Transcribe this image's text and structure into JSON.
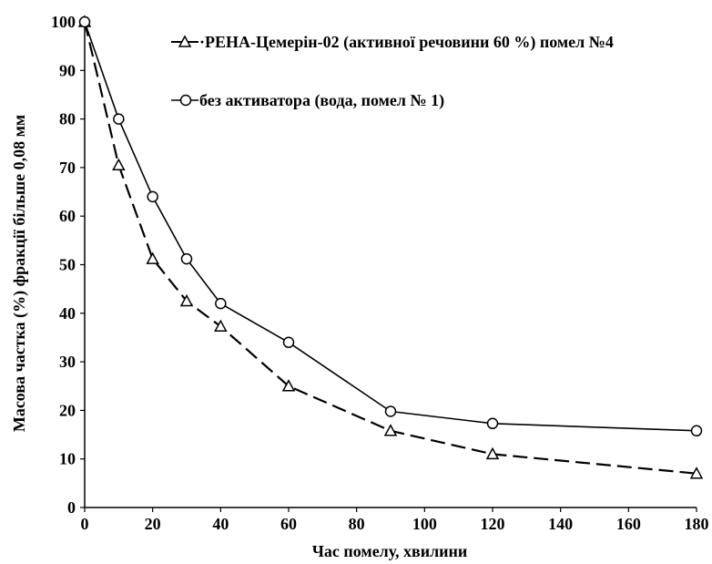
{
  "chart_data": {
    "type": "line",
    "xlabel": "Час помелу, хвилини",
    "ylabel": "Масова частка (%) фракції більше 0,08 мм",
    "xlim": [
      0,
      180
    ],
    "ylim": [
      0,
      100
    ],
    "x_ticks": [
      0,
      20,
      40,
      60,
      80,
      100,
      120,
      140,
      160,
      180
    ],
    "y_ticks": [
      0,
      10,
      20,
      30,
      40,
      50,
      60,
      70,
      80,
      90,
      100
    ],
    "grid": false,
    "legend_position": "top-right",
    "series": [
      {
        "name": "·РЕНА-Цемерін-02 (активної речовини 60 %) помел №4",
        "marker": "triangle",
        "line_style": "dashed",
        "color": "#000000",
        "x": [
          0,
          10,
          20,
          30,
          40,
          60,
          90,
          120,
          180
        ],
        "y": [
          100,
          70.5,
          51.2,
          42.5,
          37.3,
          25,
          15.8,
          11,
          7
        ]
      },
      {
        "name": "без активатора (вода, помел № 1)",
        "marker": "circle",
        "line_style": "solid",
        "color": "#000000",
        "x": [
          0,
          10,
          20,
          30,
          40,
          60,
          90,
          120,
          180
        ],
        "y": [
          100,
          80,
          64,
          51.2,
          42,
          34,
          19.8,
          17.3,
          15.8
        ]
      }
    ]
  }
}
